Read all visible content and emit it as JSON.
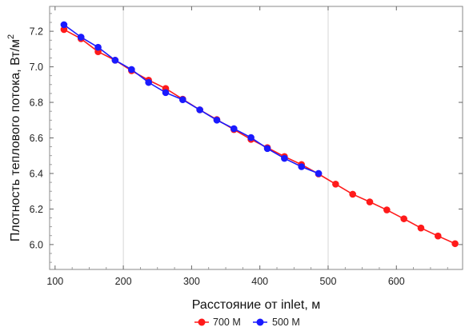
{
  "chart_data": {
    "type": "line",
    "xlabel": "Расстояние от inlet, м",
    "ylabel_main": "Плотность теплового потока, Вт/м",
    "ylabel_sup": "2",
    "xlim": [
      92,
      697
    ],
    "ylim": [
      5.86,
      7.34
    ],
    "x_ticks": [
      100,
      200,
      300,
      400,
      500,
      600
    ],
    "y_ticks": [
      6.0,
      6.2,
      6.4,
      6.6,
      6.8,
      7.0,
      7.2
    ],
    "x_tick_labels": [
      "100",
      "200",
      "300",
      "400",
      "500",
      "600"
    ],
    "y_tick_labels": [
      "6.0",
      "6.2",
      "6.4",
      "6.6",
      "6.8",
      "7.0",
      "7.2"
    ],
    "grid_x": [
      200,
      500
    ],
    "grid": "partial-vertical",
    "legend_position": "bottom-center",
    "series": [
      {
        "name": "700 M",
        "color": "#ff1a1a",
        "x": [
          113,
          138,
          163,
          188,
          212,
          237,
          262,
          287,
          312,
          337,
          362,
          387,
          411,
          436,
          461,
          486,
          511,
          536,
          561,
          586,
          611,
          636,
          661,
          686
        ],
        "y": [
          7.21,
          7.158,
          7.085,
          7.037,
          6.978,
          6.925,
          6.878,
          6.818,
          6.758,
          6.703,
          6.647,
          6.592,
          6.545,
          6.495,
          6.45,
          6.397,
          6.34,
          6.283,
          6.24,
          6.195,
          6.145,
          6.093,
          6.048,
          6.005
        ]
      },
      {
        "name": "500 M",
        "color": "#1a1aff",
        "x": [
          113,
          138,
          163,
          188,
          212,
          237,
          262,
          287,
          312,
          337,
          362,
          387,
          411,
          436,
          461,
          486
        ],
        "y": [
          7.237,
          7.167,
          7.11,
          7.037,
          6.985,
          6.912,
          6.855,
          6.815,
          6.758,
          6.7,
          6.652,
          6.602,
          6.54,
          6.485,
          6.438,
          6.4
        ]
      }
    ]
  }
}
